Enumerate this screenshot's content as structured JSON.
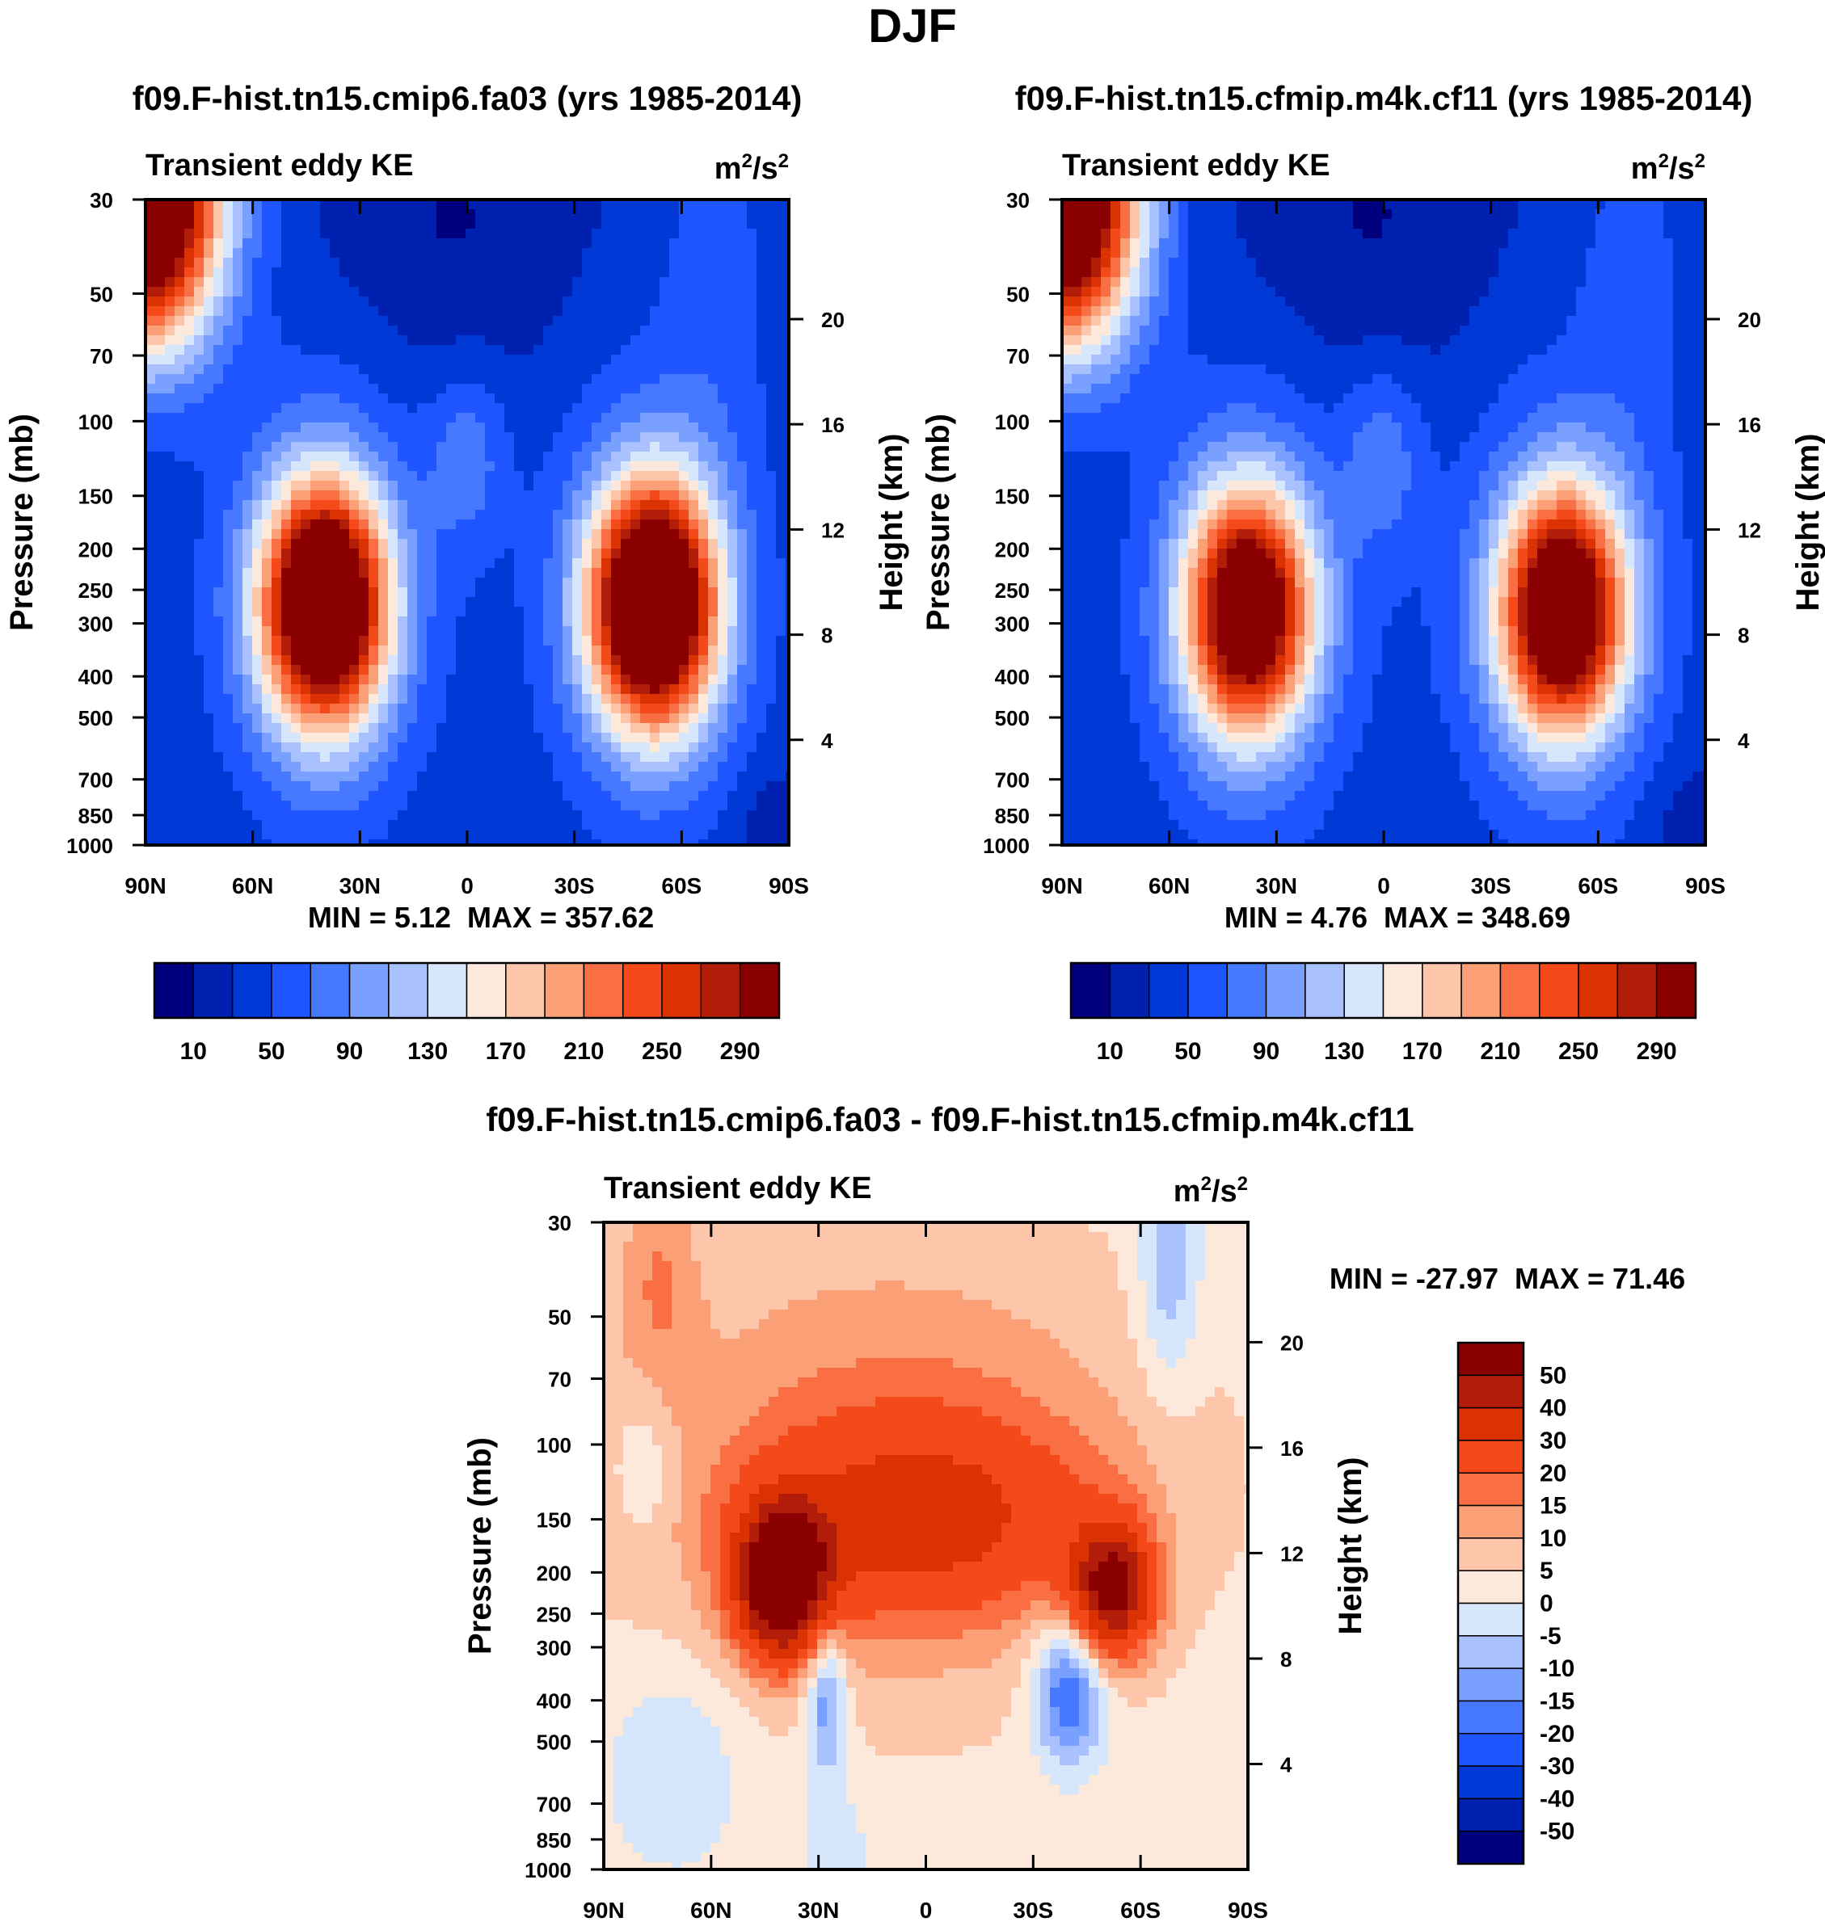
{
  "page_title": "DJF",
  "colors": {
    "abs_scale": [
      "#00007f",
      "#0021b0",
      "#0039d6",
      "#1e55ff",
      "#4679ff",
      "#7aa0ff",
      "#a9c2ff",
      "#d6e6fb",
      "#fde9db",
      "#fdc6ab",
      "#fb9f76",
      "#f96f43",
      "#f44a1a",
      "#db3203",
      "#b21d0a",
      "#8a0000"
    ],
    "diff_scale": [
      "#00007f",
      "#0021b0",
      "#0039d6",
      "#1e55ff",
      "#4679ff",
      "#7aa0ff",
      "#a9c2ff",
      "#d6e6fb",
      "#fde9db",
      "#fdc6ab",
      "#fb9f76",
      "#f96f43",
      "#f44a1a",
      "#db3203",
      "#b21d0a",
      "#8a0000"
    ]
  },
  "chart_data": [
    {
      "type": "heatmap",
      "id": "model1",
      "case_title": "f09.F-hist.tn15.cmip6.fa03 (yrs 1985-2014)",
      "variable": "Transient eddy KE",
      "units_base": "m",
      "units_exp": "2",
      "units_div": "/s",
      "ylabel": "Pressure (mb)",
      "ylabel_right": "Height (km)",
      "xticks": [
        "90N",
        "60N",
        "30N",
        "0",
        "30S",
        "60S",
        "90S"
      ],
      "yticks": [
        "30",
        "50",
        "70",
        "100",
        "150",
        "200",
        "250",
        "300",
        "400",
        "500",
        "700",
        "850",
        "1000"
      ],
      "yticks_right": [
        "20",
        "16",
        "12",
        "8",
        "4"
      ],
      "min_label": "MIN =   5.12",
      "max_label": "MAX = 357.62",
      "min": 5.12,
      "max": 357.62,
      "colorbar_labels": [
        "10",
        "50",
        "90",
        "130",
        "170",
        "210",
        "250",
        "290"
      ],
      "levels": [
        10,
        30,
        50,
        70,
        90,
        110,
        130,
        150,
        170,
        190,
        210,
        230,
        250,
        270,
        290
      ],
      "jets": [
        {
          "lat": 40,
          "p": 270,
          "peak": 340
        },
        {
          "lat": -52,
          "p": 270,
          "peak": 357
        }
      ]
    },
    {
      "type": "heatmap",
      "id": "model2",
      "case_title": "f09.F-hist.tn15.cfmip.m4k.cf11 (yrs 1985-2014)",
      "variable": "Transient eddy KE",
      "units_base": "m",
      "units_exp": "2",
      "units_div": "/s",
      "ylabel": "Pressure (mb)",
      "ylabel_right": "Height (km)",
      "xticks": [
        "90N",
        "60N",
        "30N",
        "0",
        "30S",
        "60S",
        "90S"
      ],
      "yticks": [
        "30",
        "50",
        "70",
        "100",
        "150",
        "200",
        "250",
        "300",
        "400",
        "500",
        "700",
        "850",
        "1000"
      ],
      "yticks_right": [
        "20",
        "16",
        "12",
        "8",
        "4"
      ],
      "min_label": "MIN =   4.76",
      "max_label": "MAX = 348.69",
      "min": 4.76,
      "max": 348.69,
      "colorbar_labels": [
        "10",
        "50",
        "90",
        "130",
        "170",
        "210",
        "250",
        "290"
      ],
      "levels": [
        10,
        30,
        50,
        70,
        90,
        110,
        130,
        150,
        170,
        190,
        210,
        230,
        250,
        270,
        290
      ],
      "jets": [
        {
          "lat": 38,
          "p": 280,
          "peak": 290
        },
        {
          "lat": -50,
          "p": 280,
          "peak": 300
        }
      ]
    },
    {
      "type": "heatmap",
      "id": "difference",
      "case_title": "f09.F-hist.tn15.cmip6.fa03 - f09.F-hist.tn15.cfmip.m4k.cf11",
      "variable": "Transient eddy KE",
      "units_base": "m",
      "units_exp": "2",
      "units_div": "/s",
      "ylabel": "Pressure (mb)",
      "ylabel_right": "Height (km)",
      "xticks": [
        "90N",
        "60N",
        "30N",
        "0",
        "30S",
        "60S",
        "90S"
      ],
      "yticks": [
        "30",
        "50",
        "70",
        "100",
        "150",
        "200",
        "250",
        "300",
        "400",
        "500",
        "700",
        "850",
        "1000"
      ],
      "yticks_right": [
        "20",
        "16",
        "12",
        "8",
        "4"
      ],
      "min_label": "MIN = -27.97",
      "max_label": "MAX =  71.46",
      "min": -27.97,
      "max": 71.46,
      "colorbar_labels": [
        "50",
        "40",
        "30",
        "20",
        "15",
        "10",
        "5",
        "0",
        "-5",
        "-10",
        "-15",
        "-20",
        "-30",
        "-40",
        "-50"
      ],
      "levels": [
        -50,
        -40,
        -30,
        -20,
        -15,
        -10,
        -5,
        0,
        5,
        10,
        15,
        20,
        30,
        40,
        50
      ]
    }
  ]
}
